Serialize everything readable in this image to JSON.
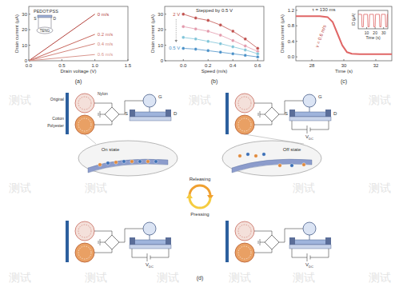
{
  "chart_data": [
    {
      "type": "line",
      "panel_label": "(a)",
      "xlabel": "Drain voltage (V)",
      "ylabel": "Drain current (μA)",
      "x": [
        0,
        1.0
      ],
      "xlim": [
        0,
        1.5
      ],
      "xticks": [
        {
          "value": 0,
          "label": "0.0"
        },
        0.5,
        {
          "value": 1,
          "label": "1.0"
        },
        1.5
      ],
      "ylim": [
        0,
        35
      ],
      "yticks": [
        0,
        10,
        20,
        30
      ],
      "series": [
        {
          "name": "0 m/s",
          "color": "#b3403a",
          "values": [
            0,
            30
          ]
        },
        {
          "name": "0.2 m/s",
          "color": "#c8675d",
          "values": [
            0,
            17
          ]
        },
        {
          "name": "0.4 m/s",
          "color": "#d2857c",
          "values": [
            0,
            11
          ]
        },
        {
          "name": "0.6 m/s",
          "color": "#d9978f",
          "values": [
            0,
            4
          ]
        }
      ],
      "inset": {
        "labels": [
          "PEDOT:PSS",
          "S",
          "D",
          "TENG"
        ]
      }
    },
    {
      "type": "line",
      "panel_label": "(b)",
      "xlabel": "Speed (m/s)",
      "ylabel": "Drain current (μA)",
      "x": [
        0,
        0.1,
        0.2,
        0.3,
        0.4,
        0.5,
        0.6
      ],
      "xlim": [
        -0.15,
        0.65
      ],
      "xticks": [
        {
          "value": 0,
          "label": "0.0"
        },
        0.2,
        0.4,
        0.6
      ],
      "ylim": [
        0,
        35
      ],
      "yticks": [
        0,
        10,
        20,
        30
      ],
      "marker": "o",
      "series": [
        {
          "name": "2 V",
          "color": "#c0504d",
          "values": [
            30,
            27.5,
            26,
            23,
            19,
            14,
            8
          ]
        },
        {
          "color": "#e39aac",
          "values": [
            22,
            20.5,
            19,
            16.5,
            13,
            9.5,
            6
          ]
        },
        {
          "color": "#7fc4d8",
          "values": [
            15,
            14,
            12.5,
            11,
            9,
            7,
            4.5
          ]
        },
        {
          "name": "0.5 V",
          "color": "#4a90c8",
          "values": [
            8,
            7.5,
            6.5,
            5.5,
            4.5,
            3.5,
            2.5
          ]
        }
      ],
      "annotations": [
        "Stepped by 0.5 V"
      ]
    },
    {
      "type": "line",
      "panel_label": "(c)",
      "xlabel": "Time (s)",
      "ylabel": "Drain current (μA)",
      "x": [
        27,
        28,
        28.5,
        29,
        29.3,
        29.6,
        29.9,
        30.2,
        30.5,
        31,
        32,
        33
      ],
      "xlim": [
        27,
        33
      ],
      "xticks": [
        28,
        30,
        32
      ],
      "ylim": [
        -0.1,
        1.3
      ],
      "yticks": [
        {
          "value": 0,
          "label": "0.0"
        },
        0.4,
        0.8,
        1.2
      ],
      "series": [
        {
          "color": "#e06666",
          "values": [
            1.05,
            1.05,
            1.05,
            1.02,
            0.9,
            0.6,
            0.3,
            0.12,
            0.08,
            0.07,
            0.07,
            0.07
          ]
        }
      ],
      "annotations": [
        "τ = 130 ms",
        "v = 0.6 m/s"
      ]
    },
    {
      "type": "line",
      "xlabel": "Time (s)",
      "ylabel": "ID (μA)",
      "x": [
        0,
        4,
        4.5,
        6,
        6.5,
        11,
        11.5,
        13,
        13.5,
        18,
        18.5,
        20,
        20.5,
        25,
        25.5,
        27,
        27.5,
        32,
        32.5,
        34,
        34.5,
        35
      ],
      "xlim": [
        0,
        35
      ],
      "xticks": [
        10,
        20,
        30
      ],
      "ylim": [
        0,
        1.4
      ],
      "tick_labels": "x",
      "series": [
        {
          "color": "#e06666",
          "values": [
            1.1,
            1.1,
            0.15,
            0.15,
            1.1,
            1.1,
            0.15,
            0.15,
            1.1,
            1.1,
            0.15,
            0.15,
            1.1,
            1.1,
            0.15,
            0.15,
            1.1,
            1.1,
            0.15,
            0.15,
            1.1,
            1.1
          ]
        }
      ]
    }
  ],
  "diagram": {
    "panel_label": "(d)",
    "materials": [
      "Nylon",
      "Original",
      "Cotton",
      "Polyester"
    ],
    "terminals": {
      "gate": "G",
      "source": "S",
      "drain": "D"
    },
    "supply": {
      "symbol": "V",
      "subscript": "DC"
    },
    "states": [
      "On state",
      "Off state"
    ],
    "transitions": [
      "Releasing",
      "Pressing"
    ]
  },
  "watermark": "测试"
}
